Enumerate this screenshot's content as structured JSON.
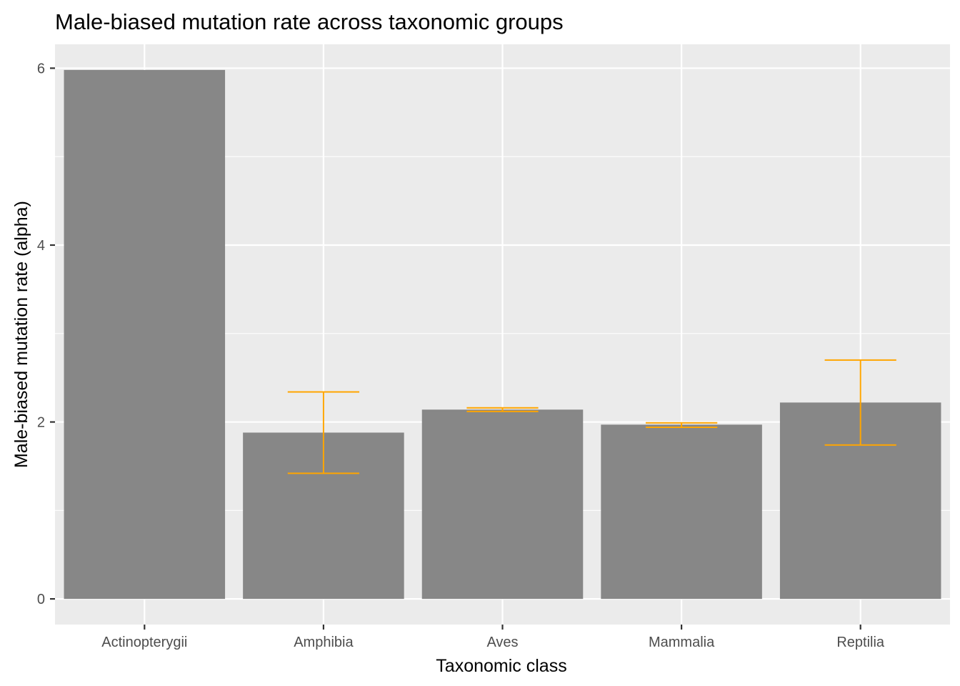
{
  "chart_data": {
    "type": "bar",
    "title": "Male-biased mutation rate across taxonomic groups",
    "xlabel": "Taxonomic class",
    "ylabel": "Male-biased mutation rate (alpha)",
    "categories": [
      "Actinopterygii",
      "Amphibia",
      "Aves",
      "Mammalia",
      "Reptilia"
    ],
    "values": [
      5.98,
      1.88,
      2.14,
      1.97,
      2.22
    ],
    "error_low": [
      null,
      1.42,
      2.12,
      1.94,
      1.74
    ],
    "error_high": [
      null,
      2.34,
      2.16,
      1.99,
      2.7
    ],
    "ylim": [
      -0.29,
      6.27
    ],
    "yticks": [
      0,
      2,
      4,
      6
    ],
    "grid": true,
    "colors": {
      "bar": "#878787",
      "error_bar": "#FFA500",
      "panel": "#EBEBEB",
      "grid": "#FFFFFF"
    }
  }
}
